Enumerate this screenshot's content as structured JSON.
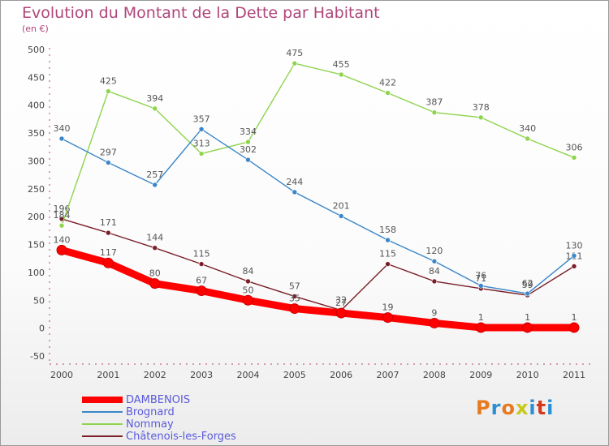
{
  "header": {
    "title": "Evolution du Montant de la Dette par Habitant",
    "subtitle": "(en €)"
  },
  "logo": {
    "text": "Proxiti",
    "colors": [
      "#e87a1e",
      "#2a8fd4",
      "#e87a1e",
      "#c8c81e",
      "#2a8fd4",
      "#d4381e",
      "#2a8fd4"
    ]
  },
  "chart_data": {
    "type": "line",
    "title": "Evolution du Montant de la Dette par Habitant",
    "ylabel": "(en €)",
    "xlabel": "",
    "ylim": [
      -50,
      500
    ],
    "yticks": [
      -50,
      0,
      50,
      100,
      150,
      200,
      250,
      300,
      350,
      400,
      450,
      500
    ],
    "x": [
      "2000",
      "2001",
      "2002",
      "2003",
      "2004",
      "2005",
      "2006",
      "2007",
      "2008",
      "2009",
      "2010",
      "2011"
    ],
    "grid": false,
    "legend_position": "bottom-left",
    "series": [
      {
        "name": "Châtenois-les-Forges",
        "color": "#7a1e28",
        "values": [
          196,
          171,
          144,
          115,
          84,
          57,
          32,
          115,
          84,
          71,
          59,
          111
        ]
      },
      {
        "name": "Nommay",
        "color": "#8ed44e",
        "values": [
          184,
          425,
          394,
          313,
          334,
          475,
          455,
          422,
          387,
          378,
          340,
          306
        ]
      },
      {
        "name": "Brognard",
        "color": "#3a86c8",
        "values": [
          340,
          297,
          257,
          357,
          302,
          244,
          201,
          158,
          120,
          76,
          62,
          130
        ]
      },
      {
        "name": "DAMBENOIS",
        "color": "#ff0000",
        "values": [
          140,
          117,
          80,
          67,
          50,
          35,
          27,
          19,
          9,
          1,
          1,
          1
        ]
      }
    ],
    "legend": [
      "DAMBENOIS",
      "Brognard",
      "Nommay",
      "Châtenois-les-Forges"
    ]
  }
}
